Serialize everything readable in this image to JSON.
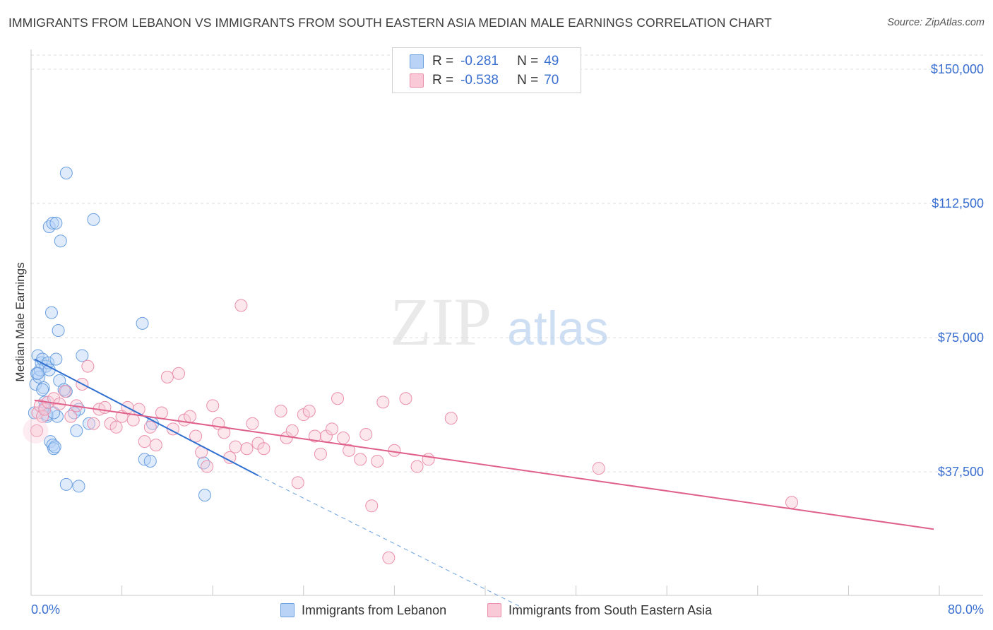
{
  "title": "IMMIGRANTS FROM LEBANON VS IMMIGRANTS FROM SOUTH EASTERN ASIA MEDIAN MALE EARNINGS CORRELATION CHART",
  "source": "Source: ZipAtlas.com",
  "watermark": {
    "zip": "ZIP",
    "atlas": "atlas"
  },
  "legend": {
    "r_label": "R =",
    "n_label": "N =",
    "rows": [
      {
        "r": "-0.281",
        "n": "49",
        "color": "#6a9fe0"
      },
      {
        "r": "-0.538",
        "n": "70",
        "color": "#ea8fab"
      }
    ]
  },
  "bottom_legend": [
    "Immigrants from Lebanon",
    "Immigrants from South Eastern Asia"
  ],
  "chart_data": {
    "type": "scatter",
    "xlabel": "",
    "ylabel": "Median Male Earnings",
    "xlim": [
      0,
      80
    ],
    "ylim": [
      3000,
      157500
    ],
    "x_tick_labels": [
      "0.0%",
      "80.0%"
    ],
    "y_ticks": [
      37500,
      75000,
      112500,
      150000
    ],
    "y_tick_labels": [
      "$37,500",
      "$75,000",
      "$112,500",
      "$150,000"
    ],
    "series": [
      {
        "name": "Immigrants from Lebanon",
        "color": "#6a9fe0",
        "line_color": "#2f6fd0",
        "trend": {
          "x0": 0.3,
          "y0": 69000,
          "x1": 20.0,
          "y1": 36500,
          "dash_x1": 43.0,
          "dash_y1": 0
        },
        "points": [
          [
            0.3,
            54000
          ],
          [
            0.4,
            62000
          ],
          [
            0.5,
            65000
          ],
          [
            0.6,
            70000
          ],
          [
            0.7,
            64000
          ],
          [
            0.8,
            66000
          ],
          [
            0.9,
            68000
          ],
          [
            1.0,
            69000
          ],
          [
            1.1,
            61000
          ],
          [
            1.2,
            57000
          ],
          [
            1.3,
            67000
          ],
          [
            1.4,
            53000
          ],
          [
            1.5,
            68000
          ],
          [
            1.6,
            66000
          ],
          [
            1.7,
            46000
          ],
          [
            1.8,
            82000
          ],
          [
            1.9,
            45000
          ],
          [
            2.0,
            44000
          ],
          [
            2.1,
            44500
          ],
          [
            2.2,
            69000
          ],
          [
            2.3,
            53000
          ],
          [
            2.4,
            77000
          ],
          [
            2.5,
            63000
          ],
          [
            1.6,
            106000
          ],
          [
            1.9,
            107000
          ],
          [
            2.2,
            107000
          ],
          [
            2.6,
            102000
          ],
          [
            3.1,
            121000
          ],
          [
            5.5,
            108000
          ],
          [
            3.1,
            34000
          ],
          [
            4.2,
            33500
          ],
          [
            4.0,
            49000
          ],
          [
            4.2,
            55000
          ],
          [
            4.5,
            70000
          ],
          [
            3.1,
            60000
          ],
          [
            5.1,
            51000
          ],
          [
            9.8,
            79000
          ],
          [
            10.0,
            41000
          ],
          [
            10.5,
            40500
          ],
          [
            10.7,
            51000
          ],
          [
            15.3,
            31000
          ],
          [
            15.2,
            40000
          ],
          [
            1.2,
            55500
          ],
          [
            0.6,
            65000
          ],
          [
            1.4,
            53500
          ],
          [
            2.9,
            60500
          ],
          [
            3.8,
            54000
          ],
          [
            1.0,
            60500
          ],
          [
            2.0,
            54000
          ]
        ]
      },
      {
        "name": "Immigrants from South Eastern Asia",
        "color": "#ea8fab",
        "line_color": "#e0608c",
        "trend": {
          "x0": 0.3,
          "y0": 57500,
          "x1": 79.5,
          "y1": 21500
        },
        "points": [
          [
            0.5,
            49000
          ],
          [
            0.6,
            54000
          ],
          [
            0.8,
            56000
          ],
          [
            1.0,
            53000
          ],
          [
            1.2,
            55000
          ],
          [
            1.5,
            57000
          ],
          [
            2.0,
            58000
          ],
          [
            2.5,
            56500
          ],
          [
            3.0,
            60000
          ],
          [
            3.5,
            53000
          ],
          [
            4.0,
            56000
          ],
          [
            4.5,
            62000
          ],
          [
            5.0,
            67000
          ],
          [
            5.5,
            51000
          ],
          [
            6.0,
            55000
          ],
          [
            6.5,
            55500
          ],
          [
            7.0,
            51000
          ],
          [
            7.5,
            50000
          ],
          [
            8.0,
            53000
          ],
          [
            8.5,
            55500
          ],
          [
            9.0,
            52000
          ],
          [
            9.5,
            55000
          ],
          [
            10.0,
            46000
          ],
          [
            10.5,
            50000
          ],
          [
            11.0,
            45000
          ],
          [
            11.5,
            54000
          ],
          [
            12.0,
            64000
          ],
          [
            12.5,
            49500
          ],
          [
            13.0,
            65000
          ],
          [
            13.5,
            52000
          ],
          [
            14.0,
            53000
          ],
          [
            14.5,
            47500
          ],
          [
            15.0,
            43000
          ],
          [
            15.5,
            39000
          ],
          [
            16.0,
            56000
          ],
          [
            16.5,
            51000
          ],
          [
            17.0,
            48500
          ],
          [
            17.5,
            41500
          ],
          [
            18.0,
            44500
          ],
          [
            18.5,
            84000
          ],
          [
            19.0,
            44000
          ],
          [
            19.5,
            51000
          ],
          [
            20.0,
            45500
          ],
          [
            20.5,
            44000
          ],
          [
            22.0,
            54500
          ],
          [
            22.5,
            47000
          ],
          [
            23.0,
            49000
          ],
          [
            23.5,
            34500
          ],
          [
            24.0,
            53500
          ],
          [
            24.5,
            54500
          ],
          [
            25.0,
            47500
          ],
          [
            25.5,
            42500
          ],
          [
            26.0,
            47500
          ],
          [
            26.5,
            49500
          ],
          [
            27.0,
            58000
          ],
          [
            27.5,
            47000
          ],
          [
            28.0,
            43500
          ],
          [
            29.0,
            41000
          ],
          [
            29.5,
            48000
          ],
          [
            30.0,
            28000
          ],
          [
            30.5,
            40500
          ],
          [
            31.0,
            57000
          ],
          [
            31.5,
            13500
          ],
          [
            32.0,
            43500
          ],
          [
            33.0,
            58000
          ],
          [
            34.0,
            39000
          ],
          [
            35.0,
            41000
          ],
          [
            37.0,
            52500
          ],
          [
            50.0,
            38500
          ],
          [
            67.0,
            29000
          ]
        ]
      }
    ]
  }
}
